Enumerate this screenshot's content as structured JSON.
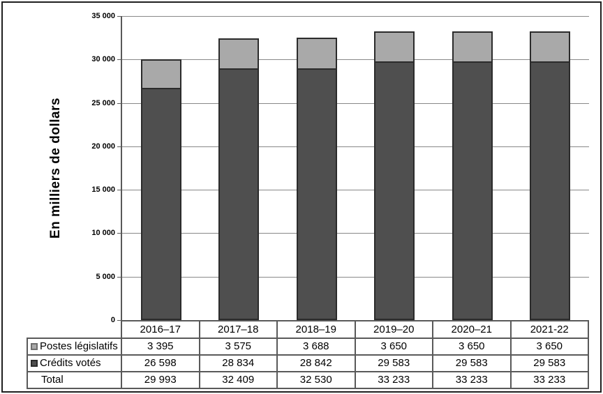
{
  "y_axis": {
    "title": "En milliers de dollars",
    "ticks": [
      "35 000",
      "30 000",
      "25 000",
      "20 000",
      "15 000",
      "10 000",
      "5 000",
      "0"
    ],
    "max": 35000
  },
  "chart_data": {
    "type": "bar",
    "stacked": true,
    "title": "",
    "xlabel": "",
    "ylabel": "En milliers de dollars",
    "ylim": [
      0,
      35000
    ],
    "grid": true,
    "legend_position": "table-left-column",
    "categories": [
      "2016–17",
      "2017–18",
      "2018–19",
      "2019–20",
      "2020–21",
      "2021-22"
    ],
    "series": [
      {
        "name": "Crédits votés",
        "stack_order": "bottom",
        "color": "#4f4f4f",
        "values": [
          26598,
          28834,
          28842,
          29583,
          29583,
          29583
        ]
      },
      {
        "name": "Postes législatifs",
        "stack_order": "top",
        "color": "#a9a9a9",
        "values": [
          3395,
          3575,
          3688,
          3650,
          3650,
          3650
        ]
      }
    ],
    "totals": [
      29993,
      32409,
      32530,
      33233,
      33233,
      33233
    ]
  },
  "table": {
    "columns": [
      "2016–17",
      "2017–18",
      "2018–19",
      "2019–20",
      "2020–21",
      "2021-22"
    ],
    "rows": [
      {
        "label": "Postes législatifs",
        "swatch": "light",
        "values": [
          "3 395",
          "3 575",
          "3 688",
          "3 650",
          "3 650",
          "3 650"
        ]
      },
      {
        "label": "Crédits votés",
        "swatch": "dark",
        "values": [
          "26 598",
          "28 834",
          "28 842",
          "29 583",
          "29 583",
          "29 583"
        ]
      },
      {
        "label": "Total",
        "swatch": null,
        "values": [
          "29 993",
          "32 409",
          "32 530",
          "33 233",
          "33 233",
          "33 233"
        ]
      }
    ]
  },
  "colors": {
    "bar_light": "#a9a9a9",
    "bar_dark": "#4f4f4f",
    "bar_border": "#2b2b2b",
    "gridline": "#888888",
    "axis": "#595959",
    "frame": "#1f1f1f"
  }
}
